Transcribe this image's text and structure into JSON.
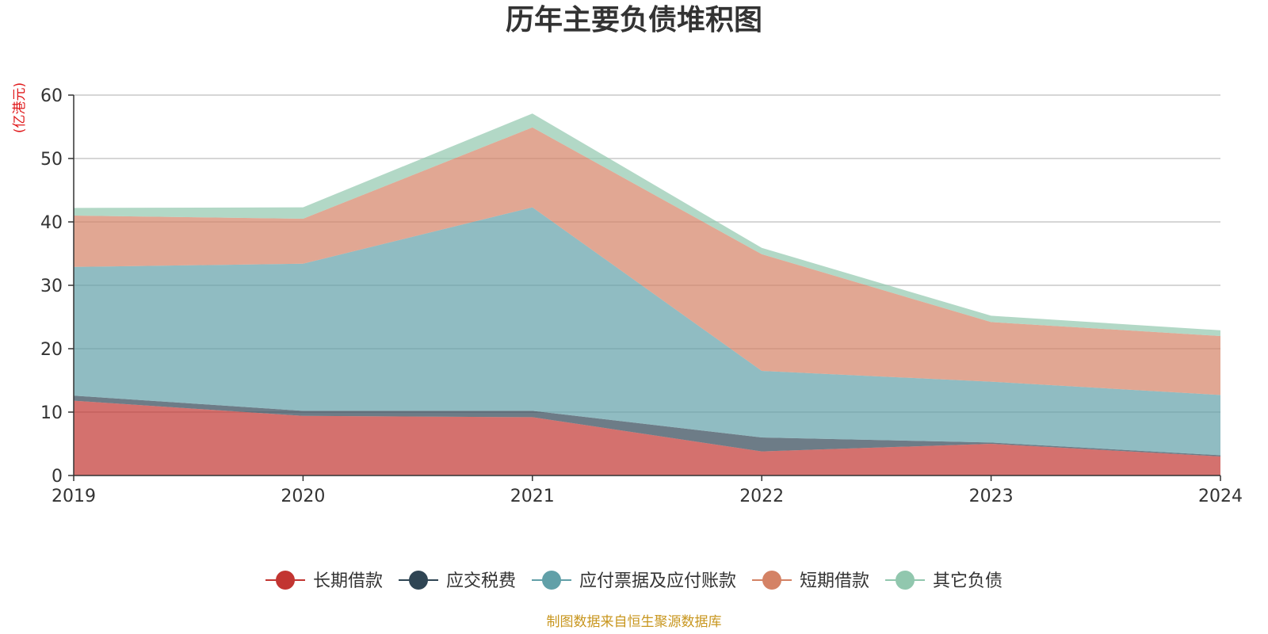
{
  "chart_data": {
    "type": "area",
    "stacked": true,
    "title": "历年主要负债堆积图",
    "unit_label": "(亿港元)",
    "x": [
      "2019",
      "2020",
      "2021",
      "2022",
      "2023",
      "2024"
    ],
    "ylim": [
      0,
      60
    ],
    "yticks": [
      0,
      10,
      20,
      30,
      40,
      50,
      60
    ],
    "grid": true,
    "legend_position": "bottom",
    "series": [
      {
        "name": "长期借款",
        "color": "#c23531",
        "values": [
          11.8,
          9.4,
          9.2,
          3.8,
          5.0,
          3.0
        ]
      },
      {
        "name": "应交税费",
        "color": "#2f4554",
        "values": [
          0.8,
          0.8,
          1.0,
          2.2,
          0.2,
          0.2
        ]
      },
      {
        "name": "应付票据及应付账款",
        "color": "#61a0a8",
        "values": [
          20.3,
          23.2,
          32.1,
          10.5,
          9.6,
          9.5
        ]
      },
      {
        "name": "短期借款",
        "color": "#d48265",
        "values": [
          8.1,
          7.1,
          12.6,
          18.4,
          9.4,
          9.3
        ]
      },
      {
        "name": "其它负债",
        "color": "#91c7ae",
        "values": [
          1.2,
          1.8,
          2.2,
          1.0,
          1.0,
          0.9
        ]
      }
    ],
    "unit_color": "#e0191b"
  },
  "source": {
    "text": "制图数据来自恒生聚源数据库",
    "color": "#c8961e"
  }
}
